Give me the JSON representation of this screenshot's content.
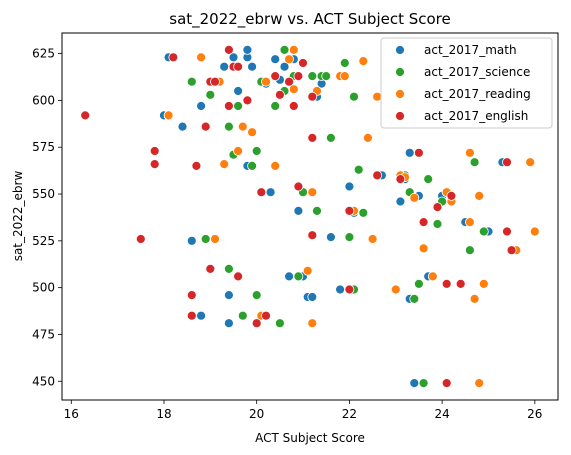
{
  "chart_data": {
    "type": "scatter",
    "title": "sat_2022_ebrw vs. ACT Subject Score",
    "xlabel": "ACT Subject Score",
    "ylabel": "sat_2022_ebrw",
    "xlim": [
      15.8,
      26.5
    ],
    "ylim": [
      440,
      636
    ],
    "xticks": [
      16,
      18,
      20,
      22,
      24,
      26
    ],
    "yticks": [
      450,
      475,
      500,
      525,
      550,
      575,
      600,
      625
    ],
    "legend_position": "top-right",
    "series": [
      {
        "name": "act_2017_math",
        "color": "#1f77b4",
        "points": [
          [
            18.0,
            592
          ],
          [
            18.1,
            623
          ],
          [
            18.4,
            586
          ],
          [
            18.6,
            525
          ],
          [
            18.8,
            597
          ],
          [
            18.8,
            485
          ],
          [
            19.3,
            618
          ],
          [
            19.4,
            496
          ],
          [
            19.4,
            481
          ],
          [
            19.5,
            623
          ],
          [
            19.6,
            605
          ],
          [
            19.8,
            623
          ],
          [
            19.8,
            627
          ],
          [
            19.8,
            565
          ],
          [
            19.9,
            618
          ],
          [
            20.2,
            609
          ],
          [
            20.3,
            551
          ],
          [
            20.4,
            622
          ],
          [
            20.5,
            611
          ],
          [
            20.6,
            618
          ],
          [
            20.7,
            506
          ],
          [
            20.8,
            622
          ],
          [
            20.9,
            541
          ],
          [
            21.0,
            506
          ],
          [
            21.1,
            495
          ],
          [
            21.2,
            495
          ],
          [
            21.3,
            602
          ],
          [
            21.4,
            609
          ],
          [
            21.6,
            527
          ],
          [
            21.8,
            499
          ],
          [
            22.0,
            554
          ],
          [
            22.1,
            540
          ],
          [
            22.3,
            540
          ],
          [
            22.7,
            560
          ],
          [
            23.1,
            546
          ],
          [
            23.2,
            558
          ],
          [
            23.3,
            572
          ],
          [
            23.3,
            494
          ],
          [
            23.4,
            449
          ],
          [
            23.5,
            549
          ],
          [
            23.7,
            506
          ],
          [
            24.0,
            549
          ],
          [
            24.1,
            551
          ],
          [
            24.5,
            535
          ],
          [
            25.0,
            530
          ],
          [
            25.3,
            567
          ]
        ]
      },
      {
        "name": "act_2017_science",
        "color": "#2ca02c",
        "points": [
          [
            18.1,
            592
          ],
          [
            18.6,
            610
          ],
          [
            18.9,
            526
          ],
          [
            19.0,
            603
          ],
          [
            19.3,
            566
          ],
          [
            19.4,
            586
          ],
          [
            19.4,
            510
          ],
          [
            19.5,
            571
          ],
          [
            19.6,
            597
          ],
          [
            19.7,
            485
          ],
          [
            19.9,
            565
          ],
          [
            20.0,
            496
          ],
          [
            20.0,
            573
          ],
          [
            20.1,
            610
          ],
          [
            20.4,
            597
          ],
          [
            20.5,
            481
          ],
          [
            20.6,
            627
          ],
          [
            20.6,
            605
          ],
          [
            20.8,
            613
          ],
          [
            20.9,
            506
          ],
          [
            21.0,
            551
          ],
          [
            21.2,
            613
          ],
          [
            21.3,
            541
          ],
          [
            21.4,
            613
          ],
          [
            21.5,
            613
          ],
          [
            21.6,
            580
          ],
          [
            21.9,
            620
          ],
          [
            22.0,
            527
          ],
          [
            22.1,
            602
          ],
          [
            22.1,
            499
          ],
          [
            22.2,
            563
          ],
          [
            22.3,
            540
          ],
          [
            23.2,
            560
          ],
          [
            23.3,
            551
          ],
          [
            23.4,
            494
          ],
          [
            23.5,
            502
          ],
          [
            23.6,
            449
          ],
          [
            23.7,
            558
          ],
          [
            23.9,
            534
          ],
          [
            24.0,
            546
          ],
          [
            24.6,
            520
          ],
          [
            24.7,
            567
          ],
          [
            24.9,
            530
          ]
        ]
      },
      {
        "name": "act_2017_reading",
        "color": "#ff7f0e",
        "points": [
          [
            18.1,
            592
          ],
          [
            18.8,
            623
          ],
          [
            19.1,
            526
          ],
          [
            19.2,
            610
          ],
          [
            19.3,
            566
          ],
          [
            19.6,
            573
          ],
          [
            19.7,
            586
          ],
          [
            19.9,
            583
          ],
          [
            20.1,
            485
          ],
          [
            20.2,
            610
          ],
          [
            20.4,
            565
          ],
          [
            20.7,
            622
          ],
          [
            20.7,
            610
          ],
          [
            20.8,
            627
          ],
          [
            20.8,
            606
          ],
          [
            21.1,
            509
          ],
          [
            21.2,
            481
          ],
          [
            21.2,
            551
          ],
          [
            21.3,
            605
          ],
          [
            21.8,
            613
          ],
          [
            21.9,
            613
          ],
          [
            22.1,
            541
          ],
          [
            22.3,
            621
          ],
          [
            22.4,
            580
          ],
          [
            22.5,
            526
          ],
          [
            22.6,
            602
          ],
          [
            23.0,
            499
          ],
          [
            23.1,
            560
          ],
          [
            23.2,
            559
          ],
          [
            23.4,
            548
          ],
          [
            23.6,
            521
          ],
          [
            23.8,
            506
          ],
          [
            24.1,
            551
          ],
          [
            24.2,
            546
          ],
          [
            24.6,
            572
          ],
          [
            24.6,
            535
          ],
          [
            24.7,
            494
          ],
          [
            24.8,
            549
          ],
          [
            24.8,
            449
          ],
          [
            24.9,
            502
          ],
          [
            25.6,
            520
          ],
          [
            25.9,
            567
          ],
          [
            26.0,
            530
          ]
        ]
      },
      {
        "name": "act_2017_english",
        "color": "#d62728",
        "points": [
          [
            16.3,
            592
          ],
          [
            17.5,
            526
          ],
          [
            17.8,
            573
          ],
          [
            17.8,
            566
          ],
          [
            18.2,
            623
          ],
          [
            18.6,
            496
          ],
          [
            18.6,
            485
          ],
          [
            18.7,
            565
          ],
          [
            18.9,
            586
          ],
          [
            19.0,
            610
          ],
          [
            19.0,
            510
          ],
          [
            19.1,
            610
          ],
          [
            19.4,
            627
          ],
          [
            19.4,
            597
          ],
          [
            19.5,
            618
          ],
          [
            19.6,
            618
          ],
          [
            19.6,
            506
          ],
          [
            19.8,
            600
          ],
          [
            20.0,
            481
          ],
          [
            20.1,
            551
          ],
          [
            20.2,
            485
          ],
          [
            20.4,
            613
          ],
          [
            20.5,
            603
          ],
          [
            20.7,
            610
          ],
          [
            20.8,
            597
          ],
          [
            20.9,
            613
          ],
          [
            20.9,
            554
          ],
          [
            21.0,
            620
          ],
          [
            21.2,
            580
          ],
          [
            21.2,
            528
          ],
          [
            21.2,
            602
          ],
          [
            22.0,
            541
          ],
          [
            22.0,
            499
          ],
          [
            22.6,
            560
          ],
          [
            23.1,
            558
          ],
          [
            23.5,
            572
          ],
          [
            23.6,
            535
          ],
          [
            23.9,
            543
          ],
          [
            24.1,
            502
          ],
          [
            24.1,
            449
          ],
          [
            24.2,
            549
          ],
          [
            24.4,
            502
          ],
          [
            25.4,
            567
          ],
          [
            25.4,
            530
          ],
          [
            25.5,
            520
          ]
        ]
      }
    ]
  }
}
